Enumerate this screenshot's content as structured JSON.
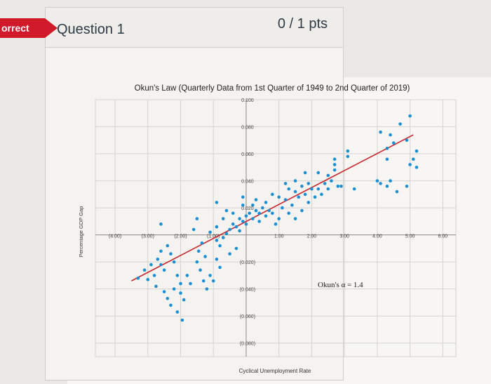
{
  "status": {
    "label": "orrect"
  },
  "question": {
    "title": "Question 1",
    "points": "0 / 1 pts"
  },
  "colors": {
    "incorrect": "#d01a2a",
    "point": "#1b8fd1",
    "trend": "#c8232a",
    "grid": "#d4d3cf"
  },
  "chart_data": {
    "type": "scatter",
    "title": "Okun's Law (Quarterly Data from 1st Quarter of 1949 to 2nd Quarter of 2019)",
    "xlabel": "Cyclical Unemployment Rate",
    "ylabel": "Percentage GDP Gap",
    "xlim": [
      -4.6,
      6.4
    ],
    "ylim": [
      -0.09,
      0.1
    ],
    "x_ticks": [
      {
        "v": -4,
        "label": "(4.00)"
      },
      {
        "v": -3,
        "label": "(3.00)"
      },
      {
        "v": -2,
        "label": "(2.00)"
      },
      {
        "v": -1,
        "label": "(1.00)"
      },
      {
        "v": 1,
        "label": "1.00"
      },
      {
        "v": 2,
        "label": "2.00"
      },
      {
        "v": 3,
        "label": "3.00"
      },
      {
        "v": 4,
        "label": "4.00"
      },
      {
        "v": 5,
        "label": "5.00"
      },
      {
        "v": 6,
        "label": "6.00"
      }
    ],
    "y_ticks": [
      {
        "v": 0.1,
        "label": "0.100"
      },
      {
        "v": 0.08,
        "label": "0.080"
      },
      {
        "v": 0.06,
        "label": "0.060"
      },
      {
        "v": 0.04,
        "label": "0.040"
      },
      {
        "v": 0.02,
        "label": "0.020"
      },
      {
        "v": -0.02,
        "label": "(0.020)"
      },
      {
        "v": -0.04,
        "label": "(0.040)"
      },
      {
        "v": -0.06,
        "label": "(0.060)"
      },
      {
        "v": -0.08,
        "label": "(0.080)"
      }
    ],
    "trendline": {
      "x": [
        -3.5,
        5.1
      ],
      "y": [
        -0.034,
        0.074
      ]
    },
    "annotation": "Okun's α = 1.4",
    "points": [
      [
        -3.3,
        -0.032
      ],
      [
        -3.1,
        -0.026
      ],
      [
        -3.0,
        -0.033
      ],
      [
        -2.9,
        -0.022
      ],
      [
        -2.8,
        -0.03
      ],
      [
        -2.75,
        -0.038
      ],
      [
        -2.6,
        -0.022
      ],
      [
        -2.5,
        -0.042
      ],
      [
        -2.4,
        -0.047
      ],
      [
        -2.3,
        -0.052
      ],
      [
        -2.2,
        -0.04
      ],
      [
        -2.1,
        -0.057
      ],
      [
        -2.0,
        -0.043
      ],
      [
        -2.0,
        -0.036
      ],
      [
        -1.95,
        -0.063
      ],
      [
        -1.9,
        -0.048
      ],
      [
        -2.6,
        -0.012
      ],
      [
        -2.5,
        -0.026
      ],
      [
        -2.3,
        -0.014
      ],
      [
        -2.2,
        -0.02
      ],
      [
        -2.1,
        -0.03
      ],
      [
        -1.5,
        -0.02
      ],
      [
        -1.4,
        -0.026
      ],
      [
        -1.3,
        -0.034
      ],
      [
        -1.2,
        -0.04
      ],
      [
        -1.1,
        -0.03
      ],
      [
        -1.0,
        -0.034
      ],
      [
        -1.45,
        -0.012
      ],
      [
        -1.35,
        -0.006
      ],
      [
        -1.25,
        -0.016
      ],
      [
        -0.9,
        -0.018
      ],
      [
        -1.6,
        0.004
      ],
      [
        -1.1,
        0.002
      ],
      [
        -0.9,
        0.006
      ],
      [
        -0.9,
        -0.004
      ],
      [
        -0.8,
        -0.008
      ],
      [
        -0.7,
        -0.002
      ],
      [
        -0.6,
        0.001
      ],
      [
        -0.5,
        0.004
      ],
      [
        -0.4,
        0.008
      ],
      [
        -0.3,
        0.006
      ],
      [
        -0.2,
        0.003
      ],
      [
        -0.1,
        0.01
      ],
      [
        -0.5,
        -0.014
      ],
      [
        -0.3,
        -0.01
      ],
      [
        -0.2,
        0.012
      ],
      [
        0.0,
        0.014
      ],
      [
        0.1,
        0.016
      ],
      [
        0.2,
        0.012
      ],
      [
        0.3,
        0.018
      ],
      [
        0.4,
        0.016
      ],
      [
        0.5,
        0.02
      ],
      [
        0.6,
        0.014
      ],
      [
        0.7,
        0.018
      ],
      [
        0.8,
        0.016
      ],
      [
        -0.7,
        0.012
      ],
      [
        -0.6,
        0.018
      ],
      [
        -0.4,
        0.016
      ],
      [
        -0.1,
        0.022
      ],
      [
        0.0,
        0.008
      ],
      [
        0.2,
        0.022
      ],
      [
        0.4,
        0.01
      ],
      [
        0.6,
        0.024
      ],
      [
        -0.9,
        0.024
      ],
      [
        -1.5,
        0.012
      ],
      [
        -2.6,
        0.008
      ],
      [
        1.0,
        0.028
      ],
      [
        1.2,
        0.026
      ],
      [
        1.3,
        0.034
      ],
      [
        1.4,
        0.022
      ],
      [
        1.5,
        0.032
      ],
      [
        1.6,
        0.028
      ],
      [
        1.7,
        0.036
      ],
      [
        1.8,
        0.03
      ],
      [
        1.9,
        0.024
      ],
      [
        2.0,
        0.034
      ],
      [
        1.1,
        0.02
      ],
      [
        1.3,
        0.016
      ],
      [
        1.5,
        0.04
      ],
      [
        1.7,
        0.018
      ],
      [
        1.9,
        0.038
      ],
      [
        1.2,
        0.038
      ],
      [
        2.1,
        0.028
      ],
      [
        2.2,
        0.034
      ],
      [
        2.4,
        0.038
      ],
      [
        2.6,
        0.04
      ],
      [
        2.5,
        0.034
      ],
      [
        2.8,
        0.036
      ],
      [
        2.9,
        0.036
      ],
      [
        2.2,
        0.046
      ],
      [
        2.7,
        0.052
      ],
      [
        2.7,
        0.048
      ],
      [
        2.7,
        0.056
      ],
      [
        3.1,
        0.058
      ],
      [
        3.1,
        0.062
      ],
      [
        3.3,
        0.034
      ],
      [
        4.0,
        0.04
      ],
      [
        4.1,
        0.038
      ],
      [
        4.3,
        0.036
      ],
      [
        4.4,
        0.04
      ],
      [
        4.6,
        0.032
      ],
      [
        4.9,
        0.036
      ],
      [
        5.0,
        0.052
      ],
      [
        5.2,
        0.05
      ],
      [
        5.1,
        0.056
      ],
      [
        5.2,
        0.062
      ],
      [
        4.3,
        0.064
      ],
      [
        4.5,
        0.068
      ],
      [
        4.4,
        0.074
      ],
      [
        4.9,
        0.07
      ],
      [
        4.7,
        0.082
      ],
      [
        5.0,
        0.088
      ],
      [
        4.1,
        0.076
      ],
      [
        4.3,
        0.056
      ],
      [
        1.5,
        0.012
      ],
      [
        2.3,
        0.03
      ],
      [
        2.5,
        0.044
      ],
      [
        1.8,
        0.046
      ],
      [
        -2.7,
        -0.018
      ],
      [
        -2.4,
        -0.008
      ],
      [
        -1.8,
        -0.03
      ],
      [
        -1.7,
        -0.036
      ],
      [
        -0.8,
        -0.024
      ],
      [
        0.9,
        0.008
      ],
      [
        1.0,
        0.012
      ],
      [
        0.8,
        0.03
      ],
      [
        0.3,
        0.026
      ],
      [
        -0.1,
        0.028
      ]
    ]
  }
}
